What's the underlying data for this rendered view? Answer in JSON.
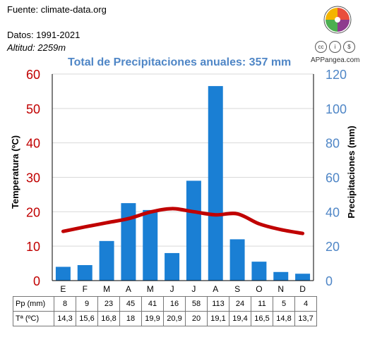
{
  "info": {
    "fuente": "Fuente: climate-data.org",
    "datos": "Datos: 1991-2021",
    "altitud": "Altitud: 2259m"
  },
  "site": "APPangea.com",
  "license_icons": [
    "cc-icon",
    "attribution-icon",
    "noncommercial-icon"
  ],
  "colors": {
    "bars": "#1a7fd4",
    "temperature_line": "#c00000",
    "left_axis": "#c00000",
    "right_axis": "#4f86c6",
    "title": "#4f86c6"
  },
  "chart_data": {
    "type": "bar",
    "title": "Total de Precipitaciones anuales: 357 mm",
    "categories": [
      "E",
      "F",
      "M",
      "A",
      "M",
      "J",
      "J",
      "A",
      "S",
      "O",
      "N",
      "D"
    ],
    "series": [
      {
        "name": "Pp (mm)",
        "type": "bar",
        "axis": "right",
        "values": [
          8,
          9,
          23,
          45,
          41,
          16,
          58,
          113,
          24,
          11,
          5,
          4
        ]
      },
      {
        "name": "Tª (ºC)",
        "type": "line",
        "axis": "left",
        "values": [
          14.3,
          15.6,
          16.8,
          18,
          19.9,
          20.9,
          20,
          19.1,
          19.4,
          16.5,
          14.8,
          13.7
        ]
      }
    ],
    "ylabel": "Temperatura (ºC)",
    "y2label": "Precipitaciones (mm)",
    "ylim": [
      0,
      60
    ],
    "y2lim": [
      0,
      120
    ],
    "yticks": [
      0,
      10,
      20,
      30,
      40,
      50,
      60
    ],
    "y2ticks": [
      0,
      20,
      40,
      60,
      80,
      100,
      120
    ],
    "grid": "horizontal"
  },
  "table": {
    "rows": [
      {
        "label": "Pp (mm)",
        "values": [
          "8",
          "9",
          "23",
          "45",
          "41",
          "16",
          "58",
          "113",
          "24",
          "11",
          "5",
          "4"
        ]
      },
      {
        "label": "Tª (ºC)",
        "values": [
          "14,3",
          "15,6",
          "16,8",
          "18",
          "19,9",
          "20,9",
          "20",
          "19,1",
          "19,4",
          "16,5",
          "14,8",
          "13,7"
        ]
      }
    ]
  }
}
